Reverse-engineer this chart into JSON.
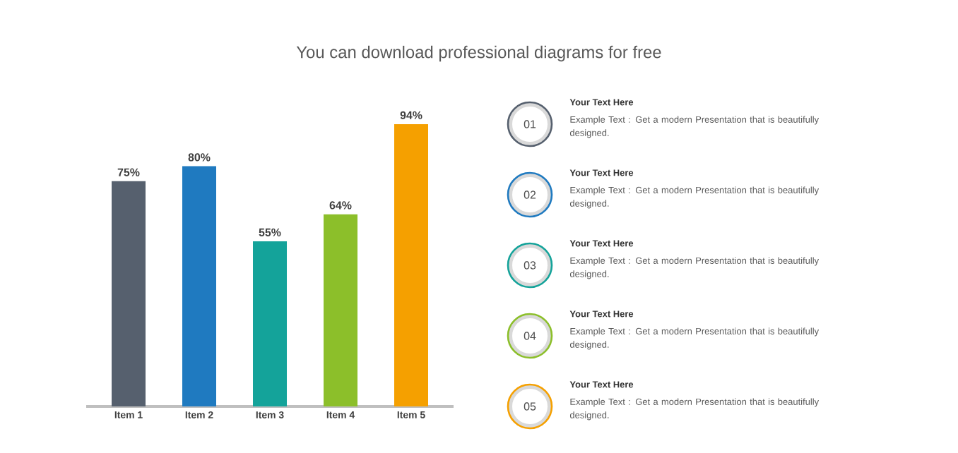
{
  "chart_data": {
    "type": "bar",
    "subtitle": "You can download professional diagrams for free",
    "categories": [
      "Item 1",
      "Item 2",
      "Item 3",
      "Item 4",
      "Item 5"
    ],
    "values": [
      75,
      80,
      55,
      64,
      94
    ],
    "value_labels": [
      "75%",
      "80%",
      "55%",
      "64%",
      "94%"
    ],
    "colors": [
      "#56606e",
      "#1f7ac0",
      "#14a39a",
      "#8cbf2a",
      "#f5a000"
    ],
    "tick_labels": "x",
    "annotations": [
      "01",
      "Your Text Here",
      "Example Text : Get a modern Presentation that is beautifully designed.",
      "02",
      "Your Text Here",
      "Example Text : Get a modern Presentation that is beautifully designed.",
      "03",
      "Your Text Here",
      "Example Text : Get a modern Presentation that is beautifully designed.",
      "04",
      "Your Text Here",
      "Example Text : Get a modern Presentation that is beautifully designed.",
      "05",
      "Your Text Here",
      "Example Text : Get a modern Presentation that is beautifully designed."
    ]
  }
}
